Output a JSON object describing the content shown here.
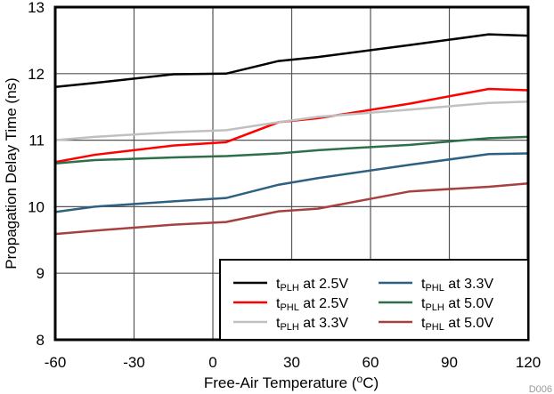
{
  "chart_data": {
    "type": "line",
    "title": "",
    "xlabel": {
      "main": "Free-Air Temperature (",
      "sup": "o",
      "end": "C)"
    },
    "ylabel": "Propagation Delay Time (ns)",
    "xlim": [
      -60,
      120
    ],
    "ylim": [
      8,
      13
    ],
    "xticks": [
      -60,
      -30,
      0,
      30,
      60,
      90,
      120
    ],
    "yticks": [
      8,
      9,
      10,
      11,
      12,
      13
    ],
    "grid": true,
    "legend_placement": "bottom-right",
    "x": [
      -60,
      -45,
      -15,
      5,
      25,
      40,
      75,
      105,
      120
    ],
    "series": [
      {
        "name": {
          "t": "t",
          "sub": "PLH",
          "rest": " at 2.5V"
        },
        "color": "#000000",
        "values": [
          11.8,
          11.86,
          11.99,
          12.0,
          12.19,
          12.25,
          12.43,
          12.59,
          12.57
        ]
      },
      {
        "name": {
          "t": "t",
          "sub": "PHL",
          "rest": " at 2.5V"
        },
        "color": "#ff0000",
        "values": [
          10.67,
          10.78,
          10.92,
          10.97,
          11.27,
          11.33,
          11.55,
          11.77,
          11.75
        ]
      },
      {
        "name": {
          "t": "t",
          "sub": "PLH",
          "rest": " at 3.3V"
        },
        "color": "#c0c0c0",
        "values": [
          11.0,
          11.05,
          11.12,
          11.15,
          11.27,
          11.35,
          11.46,
          11.56,
          11.58
        ]
      },
      {
        "name": {
          "t": "t",
          "sub": "PHL",
          "rest": " at 3.3V"
        },
        "color": "#2e6080",
        "values": [
          9.92,
          10.0,
          10.08,
          10.13,
          10.33,
          10.43,
          10.63,
          10.79,
          10.8
        ]
      },
      {
        "name": {
          "t": "t",
          "sub": "PLH",
          "rest": " at 5.0V"
        },
        "color": "#2e6e48",
        "values": [
          10.65,
          10.7,
          10.74,
          10.76,
          10.8,
          10.85,
          10.93,
          11.03,
          11.05
        ]
      },
      {
        "name": {
          "t": "t",
          "sub": "PHL",
          "rest": " at 5.0V"
        },
        "color": "#a84040",
        "values": [
          9.59,
          9.64,
          9.73,
          9.77,
          9.93,
          9.97,
          10.23,
          10.3,
          10.35
        ]
      }
    ]
  },
  "figure_id": "D006"
}
